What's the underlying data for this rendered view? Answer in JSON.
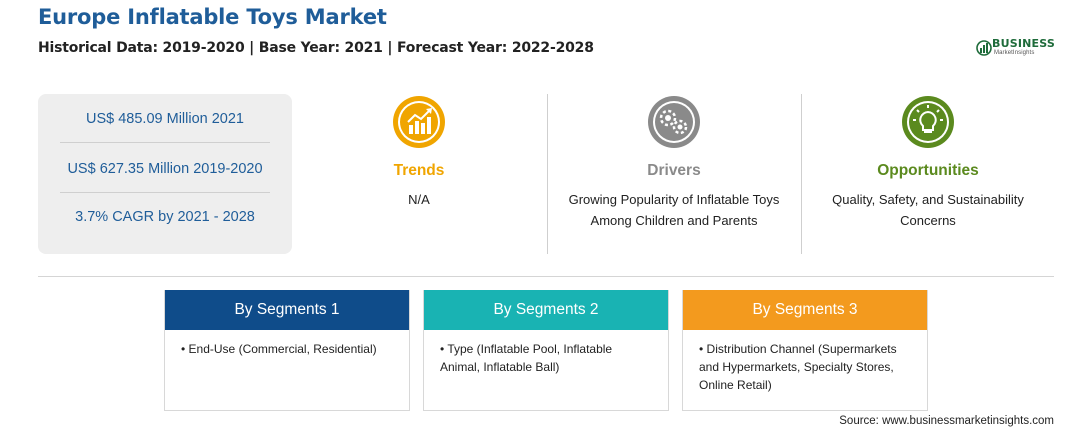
{
  "header": {
    "title": "Europe Inflatable Toys Market",
    "subtitle": "Historical Data: 2019-2020 | Base Year: 2021 | Forecast Year: 2022-2028"
  },
  "logo": {
    "word": "BUSINESS",
    "sub": "MarketInsights",
    "color": "#1e6b3a"
  },
  "stats": [
    "US$ 485.09 Million 2021",
    "US$ 627.35 Million 2019-2020",
    "3.7% CAGR by 2021 - 2028"
  ],
  "columns": [
    {
      "icon": "trend-chart-icon",
      "title": "Trends",
      "text": "N/A",
      "color": "#f0a500"
    },
    {
      "icon": "gears-icon",
      "title": "Drivers",
      "text": "Growing Popularity of Inflatable Toys Among Children and Parents",
      "color": "#8a8a8a"
    },
    {
      "icon": "lightbulb-icon",
      "title": "Opportunities",
      "text": "Quality, Safety, and Sustainability Concerns",
      "color": "#5b8a1e"
    }
  ],
  "segments": [
    {
      "title": "By Segments 1",
      "color": "#0f4c8a",
      "items": [
        "End-Use (Commercial, Residential)"
      ]
    },
    {
      "title": "By Segments 2",
      "color": "#19b3b3",
      "items": [
        "Type (Inflatable Pool, Inflatable Animal, Inflatable Ball)"
      ]
    },
    {
      "title": "By Segments 3",
      "color": "#f39a1e",
      "items": [
        "Distribution Channel (Supermarkets and Hypermarkets, Specialty Stores, Online Retail)"
      ]
    }
  ],
  "source": "Source: www.businessmarketinsights.com"
}
